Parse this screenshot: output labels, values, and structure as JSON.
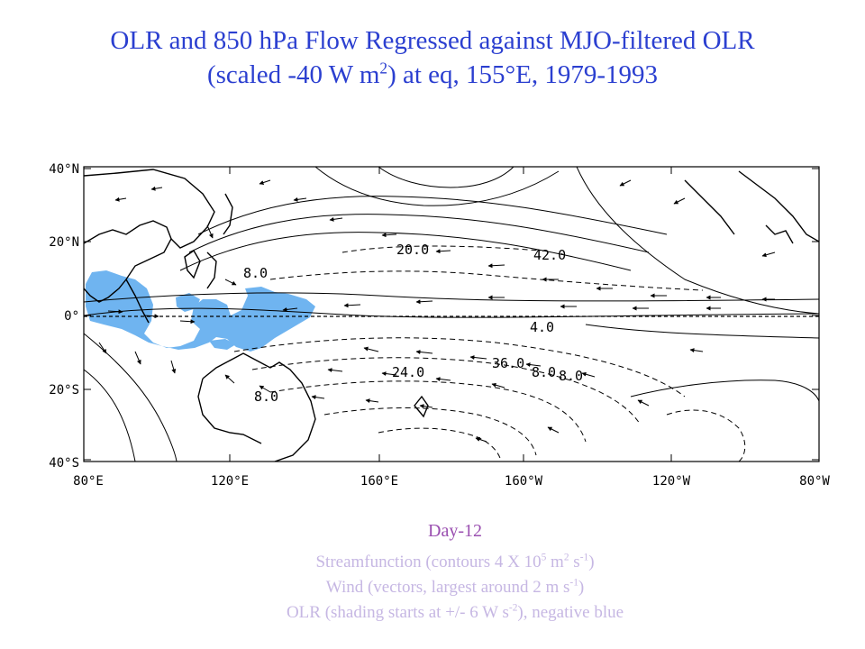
{
  "title": {
    "line1": "OLR and 850 hPa Flow Regressed against MJO-filtered OLR",
    "line2_pre": "(scaled -40 W m",
    "line2_sup": "2",
    "line2_post": ") at eq, 155°E, 1979-1993"
  },
  "map": {
    "lat_labels": [
      "40°N",
      "20°N",
      "0°",
      "20°S",
      "40°S"
    ],
    "lon_labels": [
      "80°E",
      "120°E",
      "160°E",
      "160°W",
      "120°W",
      "80°W"
    ],
    "contour_labels": [
      "20.0",
      "42.0",
      "4.0",
      "24.0",
      "36.0",
      "8.0",
      "8.0",
      "8.0",
      "8.0"
    ],
    "colors": {
      "negative_olr": "#6fb4f0",
      "contour": "#000000",
      "land": "#000000"
    }
  },
  "caption": {
    "day": "Day-12",
    "line1_a": "Streamfunction (contours 4 X 10",
    "line1_sup1": "5",
    "line1_b": " m",
    "line1_sup2": "2",
    "line1_c": " s",
    "line1_sup3": "-1",
    "line1_d": ")",
    "line2_a": "Wind (vectors, largest around 2 m s",
    "line2_sup": "-1",
    "line2_b": ")",
    "line3_a": "OLR (shading starts at +/- 6 W s",
    "line3_sup": "-2",
    "line3_b": "), negative blue"
  }
}
